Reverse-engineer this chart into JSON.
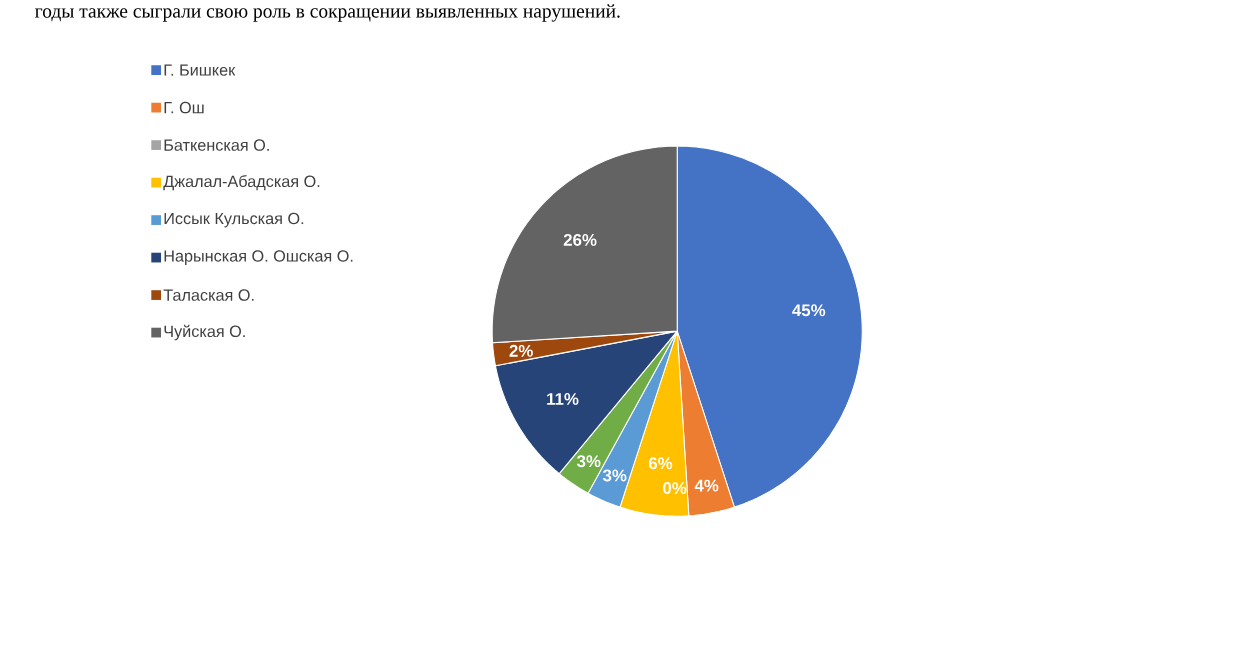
{
  "chart_data": {
    "type": "pie",
    "categories": [
      "Г. Бишкек",
      "Г. Ош",
      "Баткенская О.",
      "Джалал-Абадская О.",
      "Иссык Кульская О.",
      null,
      "Нарынская О.  Ошская О.",
      "Талаская О.",
      "Чуйская О."
    ],
    "values": [
      45,
      4,
      0,
      6,
      3,
      3,
      11,
      2,
      26
    ],
    "value_labels": [
      "45%",
      "4%",
      "0%",
      "6%",
      "3%",
      "3%",
      "11%",
      "2%",
      "26%"
    ],
    "colors": [
      "#4472c4",
      "#ed7d31",
      "#a5a5a5",
      "#ffc000",
      "#5b9bd5",
      "#70ad47",
      "#264478",
      "#9e480e",
      "#636363"
    ],
    "legend": "left",
    "annotations": [
      "годы также сыграли свою роль в сокращении выявленных нарушений."
    ]
  }
}
